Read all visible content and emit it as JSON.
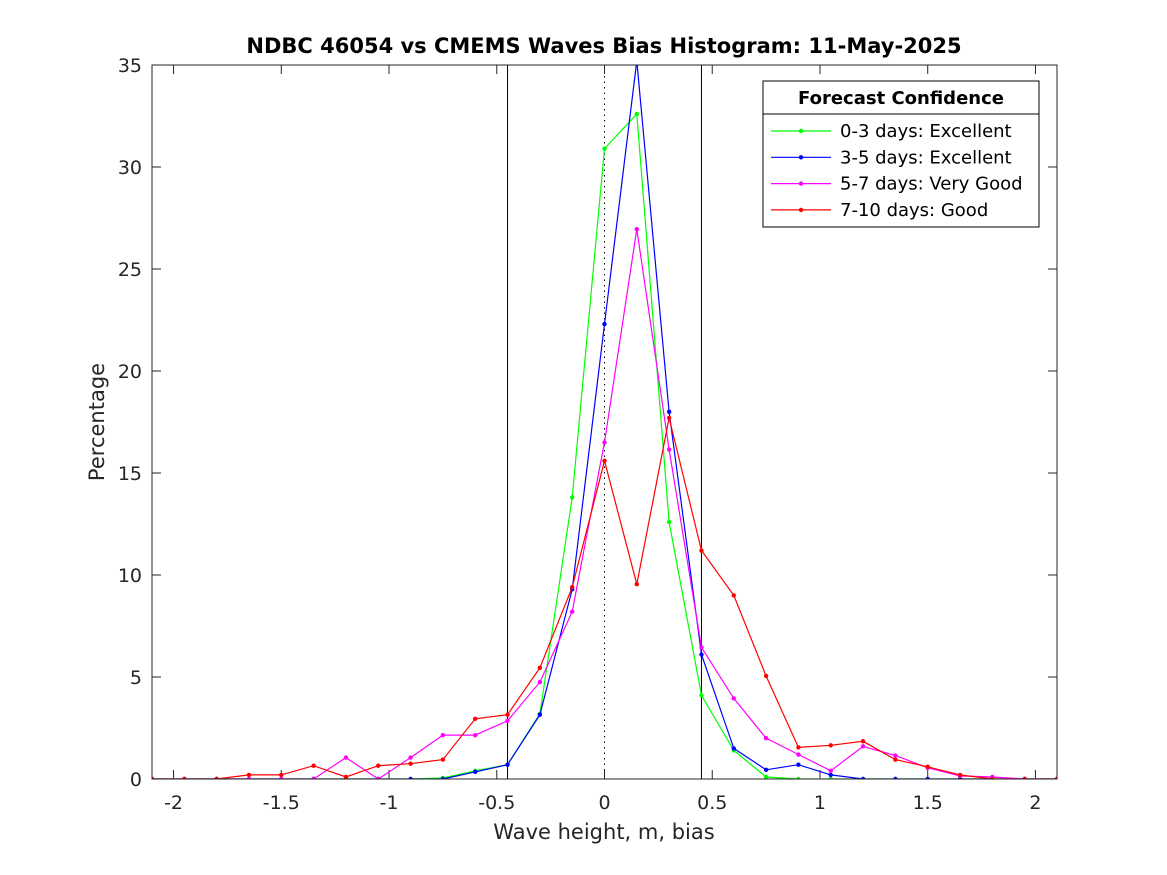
{
  "chart_data": {
    "type": "line",
    "title": "NDBC 46054 vs CMEMS Waves Bias Histogram: 11-May-2025",
    "xlabel": "Wave height, m, bias",
    "ylabel": "Percentage",
    "xlim": [
      -2.1,
      2.1
    ],
    "ylim": [
      0,
      35
    ],
    "xticks": [
      -2,
      -1.5,
      -1,
      -0.5,
      0,
      0.5,
      1,
      1.5,
      2
    ],
    "xtick_labels": [
      "-2",
      "-1.5",
      "-1",
      "-0.5",
      "0",
      "0.5",
      "1",
      "1.5",
      "2"
    ],
    "yticks": [
      0,
      5,
      10,
      15,
      20,
      25,
      30,
      35
    ],
    "ytick_labels": [
      "0",
      "5",
      "10",
      "15",
      "20",
      "25",
      "30",
      "35"
    ],
    "reference_lines": {
      "solid_x": [
        -0.45,
        0.45
      ],
      "dotted_x": [
        0
      ]
    },
    "legend": {
      "title": "Forecast Confidence",
      "location": "top-right"
    },
    "x": [
      -2.1,
      -1.95,
      -1.8,
      -1.65,
      -1.5,
      -1.35,
      -1.2,
      -1.05,
      -0.9,
      -0.75,
      -0.6,
      -0.45,
      -0.3,
      -0.15,
      0,
      0.15,
      0.3,
      0.45,
      0.6,
      0.75,
      0.9,
      1.05,
      1.2,
      1.35,
      1.5,
      1.65,
      1.8,
      1.95,
      2.1
    ],
    "series": [
      {
        "name": "0-3 days: Excellent",
        "color": "#00ff00",
        "values": [
          0,
          0,
          0,
          0,
          0,
          0,
          0,
          0,
          0,
          0.05,
          0.4,
          0.7,
          3.2,
          13.8,
          30.9,
          32.6,
          12.6,
          4.1,
          1.4,
          0.1,
          0,
          0,
          0,
          0,
          0,
          0,
          0,
          0,
          0
        ]
      },
      {
        "name": "3-5 days: Excellent",
        "color": "#0000ff",
        "values": [
          0,
          0,
          0,
          0,
          0,
          0,
          0,
          0,
          0,
          0,
          0.35,
          0.7,
          3.15,
          9.3,
          22.3,
          35.2,
          18.0,
          6.1,
          1.5,
          0.45,
          0.7,
          0.2,
          0,
          0,
          0,
          0,
          0,
          0,
          0
        ]
      },
      {
        "name": "5-7 days: Very Good",
        "color": "#ff00ff",
        "values": [
          0,
          0,
          0,
          0,
          0,
          0,
          1.05,
          0,
          1.05,
          2.15,
          2.15,
          2.85,
          4.75,
          8.2,
          16.5,
          26.95,
          16.15,
          6.45,
          3.95,
          2.0,
          1.2,
          0.4,
          1.6,
          1.15,
          0.55,
          0.15,
          0.1,
          0,
          0
        ]
      },
      {
        "name": "7-10 days: Good",
        "color": "#ff0000",
        "values": [
          0,
          0,
          0,
          0.2,
          0.2,
          0.65,
          0.1,
          0.65,
          0.75,
          0.95,
          2.95,
          3.15,
          5.45,
          9.4,
          15.6,
          9.55,
          17.7,
          11.2,
          9.0,
          5.05,
          1.55,
          1.65,
          1.85,
          0.95,
          0.6,
          0.2,
          0,
          0,
          0
        ]
      }
    ]
  }
}
